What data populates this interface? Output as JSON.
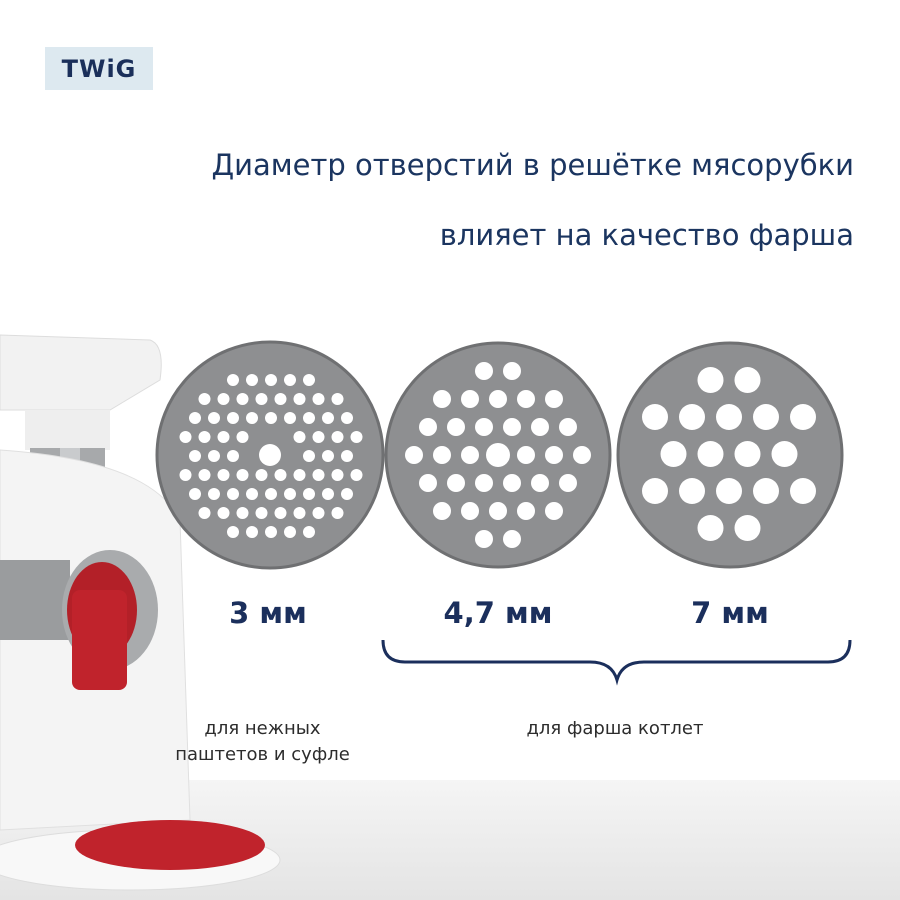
{
  "logo": {
    "text": "TWiG"
  },
  "headline": {
    "line1": "Диаметр отверстий в решётке мясорубки",
    "line2": "влияет на качество фарша"
  },
  "plates": [
    {
      "size_label": "3 мм"
    },
    {
      "size_label": "4,7 мм"
    },
    {
      "size_label": "7 мм"
    }
  ],
  "notes": {
    "soft": [
      "для нежных",
      "паштетов и суфле"
    ],
    "cutlets": "для фарша котлет"
  },
  "colors": {
    "text": "#1b2f5c",
    "logo_bg": "#dde9f0",
    "plate": "#8e8f91",
    "meat": "#c0232c"
  }
}
